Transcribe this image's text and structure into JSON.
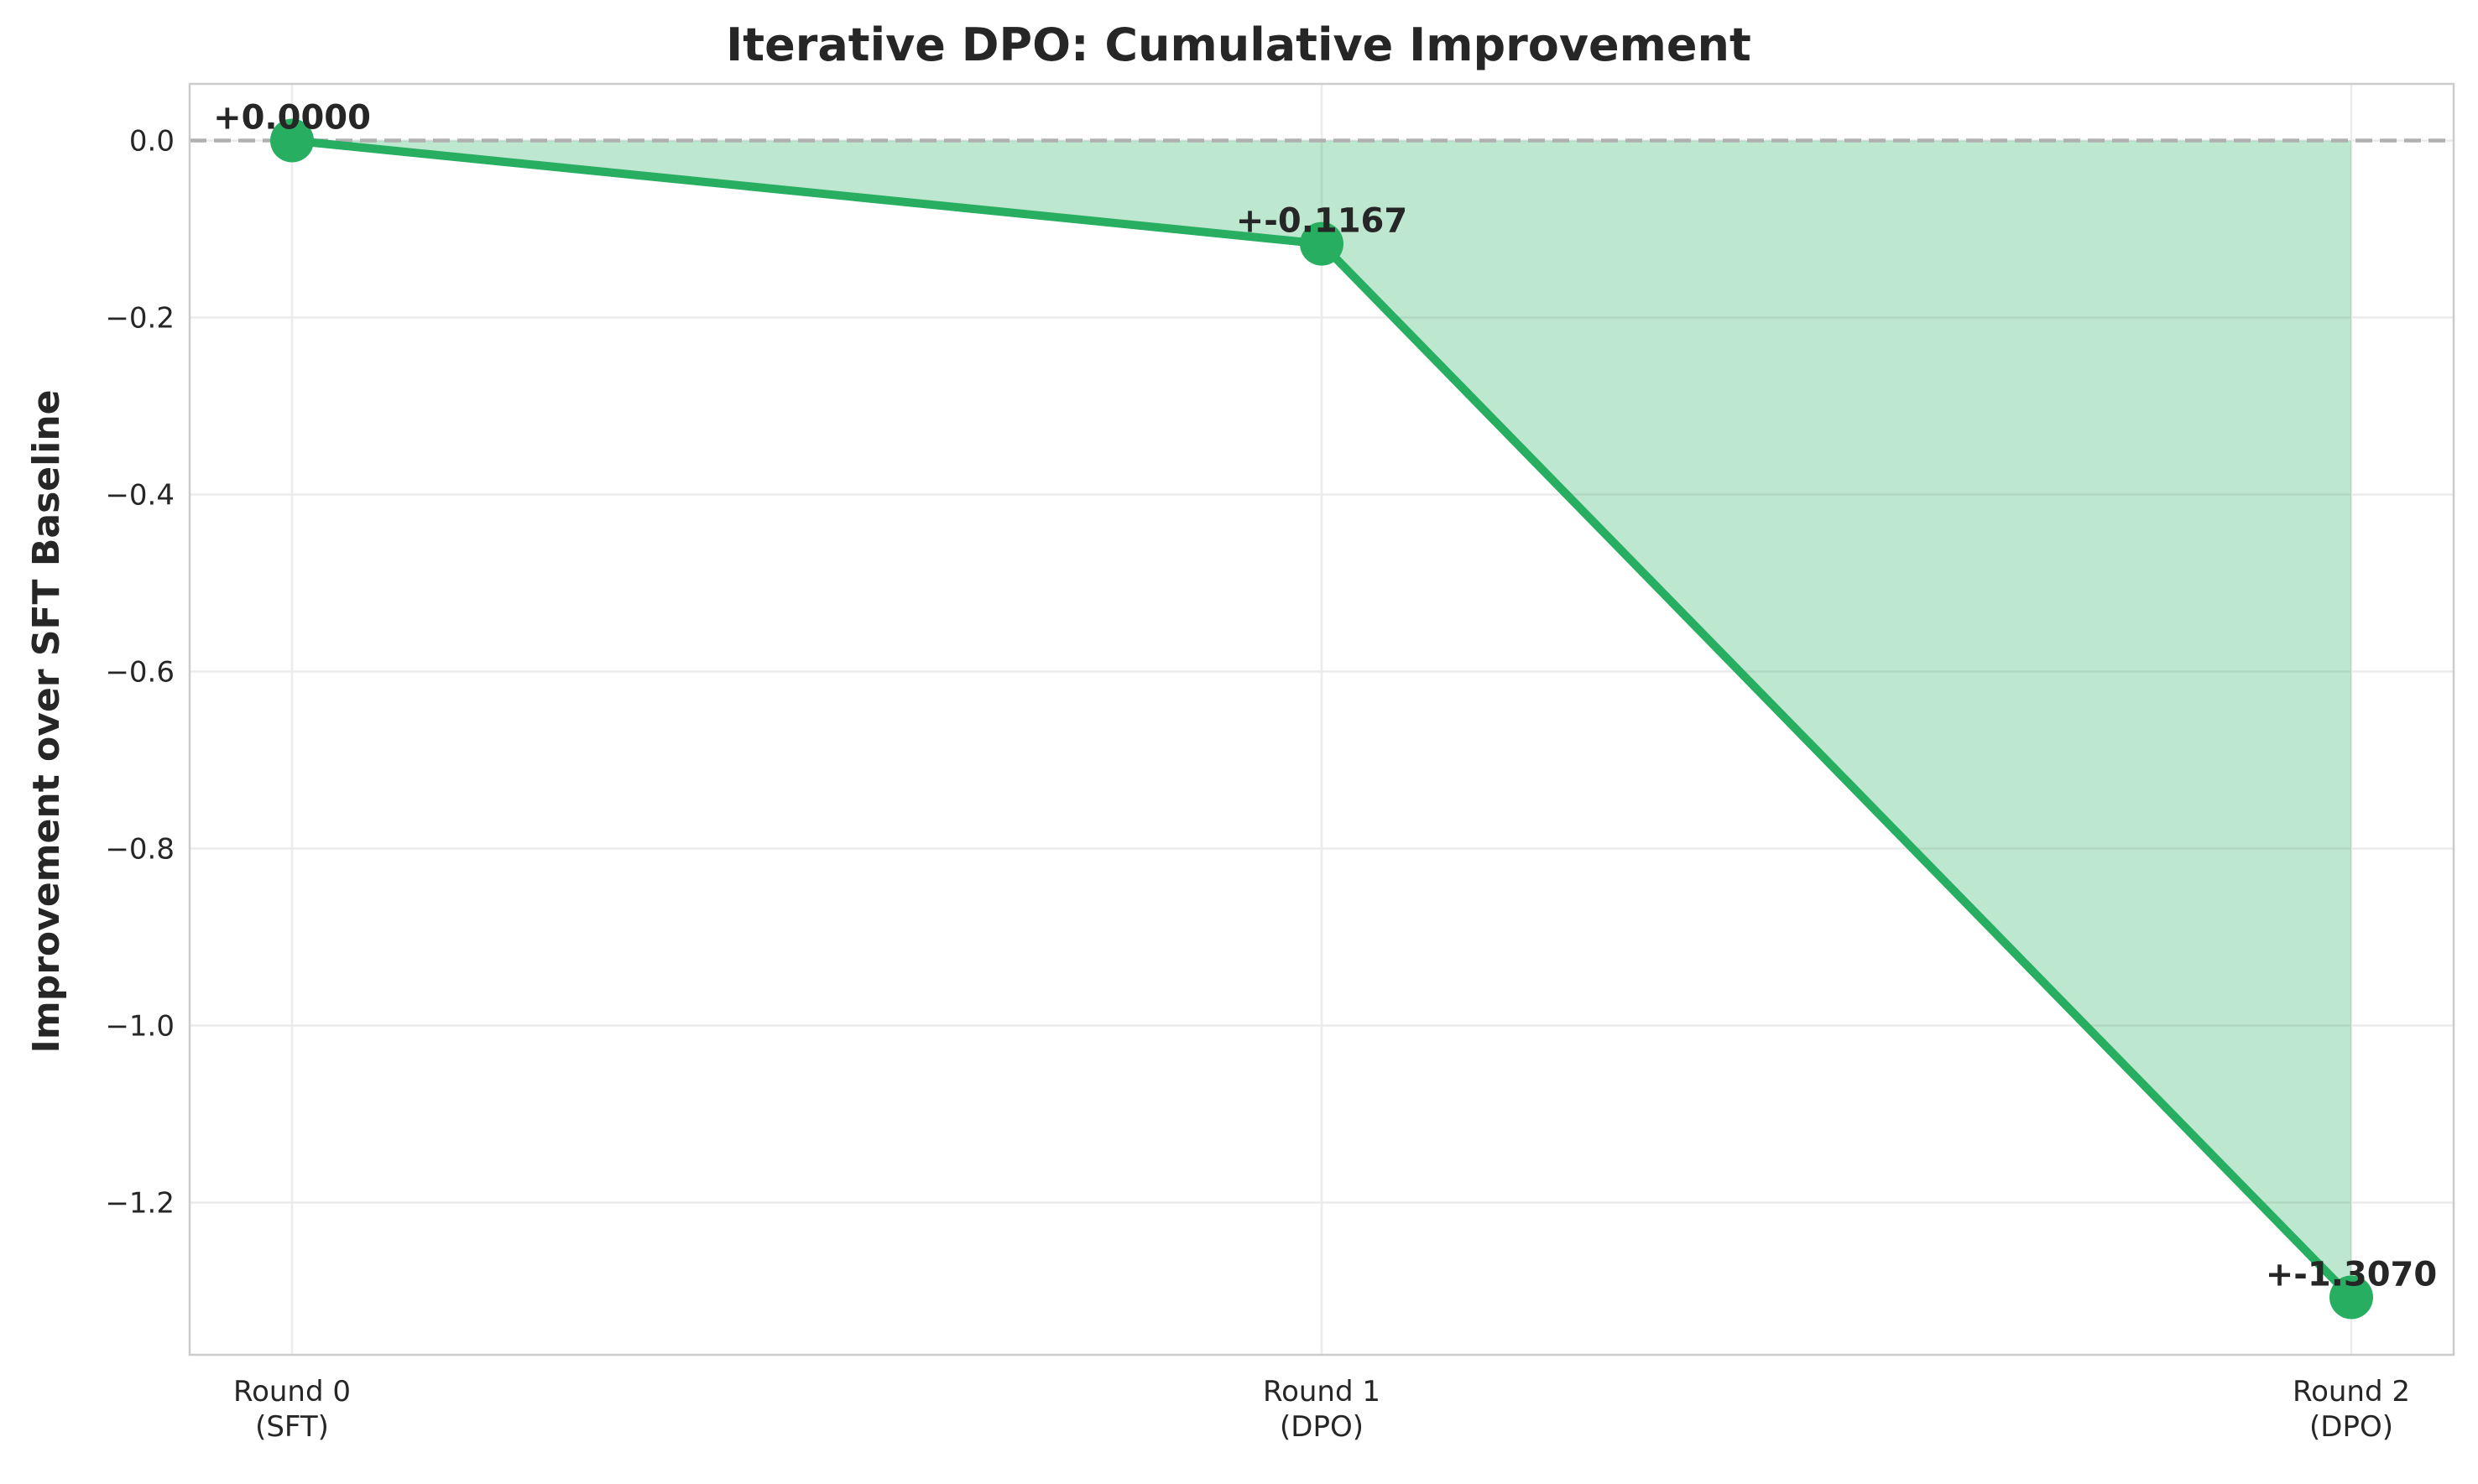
{
  "chart_data": {
    "type": "line",
    "title": "Iterative DPO: Cumulative Improvement",
    "xlabel": "",
    "ylabel": "Improvement over SFT Baseline",
    "categories": [
      [
        "Round 0",
        "(SFT)"
      ],
      [
        "Round 1",
        "(DPO)"
      ],
      [
        "Round 2",
        "(DPO)"
      ]
    ],
    "values": [
      0.0,
      -0.1167,
      -1.307
    ],
    "data_labels": [
      "+0.0000",
      "+-0.1167",
      "+-1.3070"
    ],
    "yticks": [
      0.0,
      -0.2,
      -0.4,
      -0.6,
      -0.8,
      -1.0,
      -1.2
    ],
    "ytick_labels": [
      "0.0",
      "−0.2",
      "−0.4",
      "−0.6",
      "−0.8",
      "−1.0",
      "−1.2"
    ],
    "ylim": [
      -1.372,
      0.064
    ],
    "baseline": 0.0,
    "fill_to_baseline": true,
    "grid": true,
    "legend": "none",
    "colors": {
      "line": "#27ae60",
      "fill": "#27ae60",
      "baseline": "#b0b0b0",
      "grid": "#ebebeb",
      "spine": "#cccccc"
    }
  }
}
